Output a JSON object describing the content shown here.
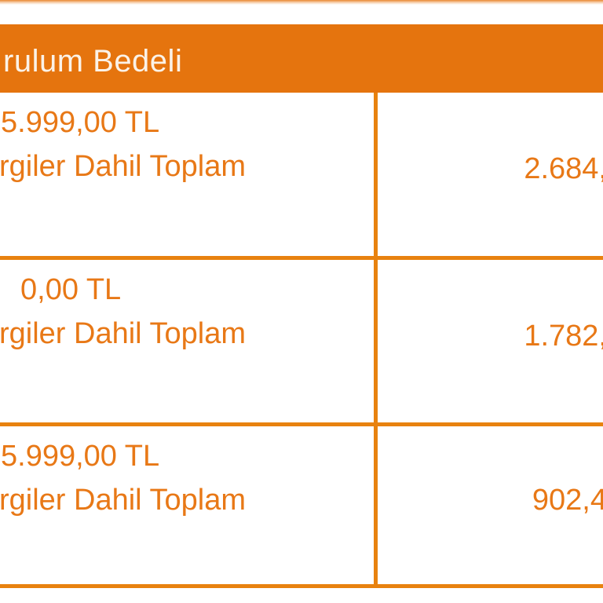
{
  "header": {
    "title": "rulum Bedeli"
  },
  "table": {
    "rows": [
      {
        "price": "5.999,00 TL",
        "label": "rgiler Dahil Toplam",
        "total": "2.684,"
      },
      {
        "price": "0,00 TL",
        "label": "rgiler Dahil Toplam",
        "total": "1.782,"
      },
      {
        "price": "5.999,00 TL",
        "label": "rgiler Dahil Toplam",
        "total": "902,4"
      }
    ]
  },
  "colors": {
    "header_background": "#E5740E",
    "table_border": "#E8820F",
    "text_orange": "#E87816",
    "header_text": "#FBF2E7",
    "page_background": "#FFFFFF"
  }
}
